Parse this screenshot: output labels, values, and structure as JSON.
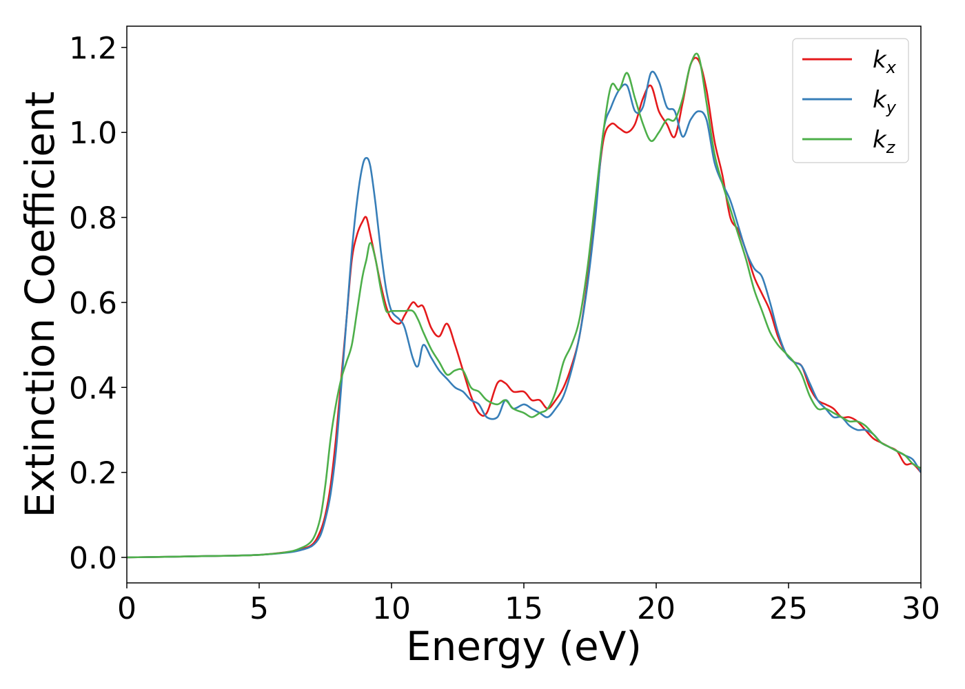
{
  "chart_data": {
    "type": "line",
    "title": "",
    "xlabel": "Energy (eV)",
    "ylabel": "Extinction Coefficient",
    "xlim": [
      0,
      30
    ],
    "ylim": [
      -0.06,
      1.25
    ],
    "xticks": [
      0,
      5,
      10,
      15,
      20,
      25,
      30
    ],
    "xtick_labels": [
      "0",
      "5",
      "10",
      "15",
      "20",
      "25",
      "30"
    ],
    "yticks": [
      0.0,
      0.2,
      0.4,
      0.6,
      0.8,
      1.0,
      1.2
    ],
    "ytick_labels": [
      "0.0",
      "0.2",
      "0.4",
      "0.6",
      "0.8",
      "1.0",
      "1.2"
    ],
    "grid": false,
    "legend_position": "top-right",
    "series": [
      {
        "name": "k_x",
        "label_main": "k",
        "label_sub": "x",
        "color": "#e41a1c",
        "x": [
          0,
          1,
          2,
          3,
          4,
          5,
          6,
          6.5,
          7,
          7.3,
          7.5,
          7.7,
          7.9,
          8.1,
          8.3,
          8.5,
          8.7,
          8.9,
          9.05,
          9.2,
          9.4,
          9.6,
          9.8,
          10,
          10.3,
          10.5,
          10.8,
          11,
          11.2,
          11.5,
          11.8,
          12.1,
          12.4,
          12.7,
          13,
          13.3,
          13.6,
          14,
          14.3,
          14.6,
          15,
          15.3,
          15.6,
          15.9,
          16.2,
          16.5,
          16.8,
          17.1,
          17.4,
          17.7,
          18,
          18.3,
          18.6,
          18.9,
          19.2,
          19.5,
          19.8,
          20.1,
          20.4,
          20.7,
          21,
          21.3,
          21.6,
          21.9,
          22.2,
          22.5,
          22.8,
          23.1,
          23.4,
          23.7,
          24,
          24.3,
          24.6,
          24.9,
          25.2,
          25.5,
          25.8,
          26.1,
          26.4,
          26.7,
          27,
          27.3,
          27.6,
          27.9,
          28.2,
          28.5,
          28.8,
          29.1,
          29.4,
          29.7,
          30
        ],
        "y": [
          0.0,
          0.001,
          0.002,
          0.003,
          0.004,
          0.006,
          0.012,
          0.018,
          0.03,
          0.06,
          0.1,
          0.17,
          0.28,
          0.42,
          0.56,
          0.7,
          0.76,
          0.79,
          0.8,
          0.76,
          0.7,
          0.64,
          0.59,
          0.56,
          0.55,
          0.57,
          0.6,
          0.59,
          0.59,
          0.54,
          0.52,
          0.55,
          0.5,
          0.44,
          0.38,
          0.34,
          0.34,
          0.41,
          0.41,
          0.39,
          0.39,
          0.37,
          0.37,
          0.35,
          0.37,
          0.4,
          0.45,
          0.52,
          0.65,
          0.82,
          0.98,
          1.02,
          1.01,
          1.0,
          1.02,
          1.08,
          1.11,
          1.05,
          1.02,
          0.99,
          1.07,
          1.16,
          1.17,
          1.1,
          0.98,
          0.9,
          0.8,
          0.77,
          0.72,
          0.66,
          0.62,
          0.58,
          0.52,
          0.48,
          0.46,
          0.45,
          0.4,
          0.37,
          0.36,
          0.35,
          0.33,
          0.33,
          0.32,
          0.3,
          0.28,
          0.27,
          0.26,
          0.25,
          0.22,
          0.22,
          0.2
        ]
      },
      {
        "name": "k_y",
        "label_main": "k",
        "label_sub": "y",
        "color": "#377eb8",
        "x": [
          0,
          1,
          2,
          3,
          4,
          5,
          6,
          6.5,
          7,
          7.3,
          7.5,
          7.7,
          7.9,
          8.1,
          8.3,
          8.5,
          8.7,
          8.9,
          9.05,
          9.2,
          9.4,
          9.6,
          9.8,
          10,
          10.3,
          10.5,
          10.8,
          11,
          11.2,
          11.5,
          11.8,
          12.1,
          12.4,
          12.7,
          13,
          13.3,
          13.6,
          14,
          14.3,
          14.6,
          15,
          15.3,
          15.6,
          15.9,
          16.2,
          16.5,
          16.8,
          17.1,
          17.4,
          17.7,
          18,
          18.3,
          18.6,
          18.9,
          19.2,
          19.5,
          19.8,
          20.1,
          20.4,
          20.7,
          21,
          21.3,
          21.6,
          21.9,
          22.2,
          22.5,
          22.8,
          23.1,
          23.4,
          23.7,
          24,
          24.3,
          24.6,
          24.9,
          25.2,
          25.5,
          25.8,
          26.1,
          26.4,
          26.7,
          27,
          27.3,
          27.6,
          27.9,
          28.2,
          28.5,
          28.8,
          29.1,
          29.4,
          29.7,
          30
        ],
        "y": [
          0.0,
          0.001,
          0.002,
          0.003,
          0.004,
          0.006,
          0.011,
          0.016,
          0.027,
          0.05,
          0.09,
          0.15,
          0.25,
          0.4,
          0.56,
          0.72,
          0.84,
          0.92,
          0.94,
          0.92,
          0.83,
          0.72,
          0.63,
          0.58,
          0.56,
          0.54,
          0.47,
          0.45,
          0.5,
          0.47,
          0.44,
          0.42,
          0.4,
          0.39,
          0.37,
          0.36,
          0.33,
          0.33,
          0.37,
          0.35,
          0.36,
          0.35,
          0.34,
          0.33,
          0.35,
          0.38,
          0.44,
          0.52,
          0.64,
          0.8,
          1.0,
          1.06,
          1.1,
          1.11,
          1.05,
          1.06,
          1.14,
          1.12,
          1.06,
          1.05,
          0.99,
          1.03,
          1.05,
          1.03,
          0.93,
          0.88,
          0.84,
          0.78,
          0.72,
          0.68,
          0.66,
          0.6,
          0.53,
          0.48,
          0.46,
          0.45,
          0.41,
          0.37,
          0.35,
          0.33,
          0.33,
          0.31,
          0.3,
          0.3,
          0.29,
          0.27,
          0.26,
          0.25,
          0.24,
          0.23,
          0.2
        ]
      },
      {
        "name": "k_z",
        "label_main": "k",
        "label_sub": "z",
        "color": "#4daf4a",
        "x": [
          0,
          1,
          2,
          3,
          4,
          5,
          6,
          6.5,
          7,
          7.3,
          7.5,
          7.7,
          7.9,
          8.1,
          8.3,
          8.5,
          8.7,
          8.9,
          9.05,
          9.2,
          9.4,
          9.6,
          9.8,
          10,
          10.3,
          10.5,
          10.8,
          11,
          11.2,
          11.5,
          11.8,
          12.1,
          12.4,
          12.7,
          13,
          13.3,
          13.6,
          14,
          14.3,
          14.6,
          15,
          15.3,
          15.6,
          15.9,
          16.2,
          16.5,
          16.8,
          17.1,
          17.4,
          17.7,
          18,
          18.3,
          18.6,
          18.9,
          19.2,
          19.5,
          19.8,
          20.1,
          20.4,
          20.7,
          21,
          21.3,
          21.6,
          21.9,
          22.2,
          22.5,
          22.8,
          23.1,
          23.4,
          23.7,
          24,
          24.3,
          24.6,
          24.9,
          25.2,
          25.5,
          25.8,
          26.1,
          26.4,
          26.7,
          27,
          27.3,
          27.6,
          27.9,
          28.2,
          28.5,
          28.8,
          29.1,
          29.4,
          29.7,
          30
        ],
        "y": [
          0.0,
          0.001,
          0.002,
          0.003,
          0.004,
          0.006,
          0.012,
          0.02,
          0.04,
          0.09,
          0.17,
          0.28,
          0.36,
          0.42,
          0.46,
          0.5,
          0.58,
          0.66,
          0.7,
          0.74,
          0.7,
          0.63,
          0.58,
          0.58,
          0.58,
          0.58,
          0.58,
          0.56,
          0.53,
          0.49,
          0.46,
          0.43,
          0.44,
          0.44,
          0.4,
          0.39,
          0.37,
          0.36,
          0.37,
          0.35,
          0.34,
          0.33,
          0.34,
          0.35,
          0.39,
          0.46,
          0.5,
          0.56,
          0.68,
          0.84,
          1.0,
          1.11,
          1.1,
          1.14,
          1.08,
          1.02,
          0.98,
          1.0,
          1.03,
          1.03,
          1.08,
          1.16,
          1.18,
          1.07,
          0.95,
          0.88,
          0.82,
          0.76,
          0.7,
          0.63,
          0.58,
          0.53,
          0.5,
          0.48,
          0.46,
          0.43,
          0.38,
          0.35,
          0.35,
          0.34,
          0.33,
          0.32,
          0.32,
          0.31,
          0.29,
          0.27,
          0.26,
          0.25,
          0.24,
          0.22,
          0.21
        ]
      }
    ]
  }
}
